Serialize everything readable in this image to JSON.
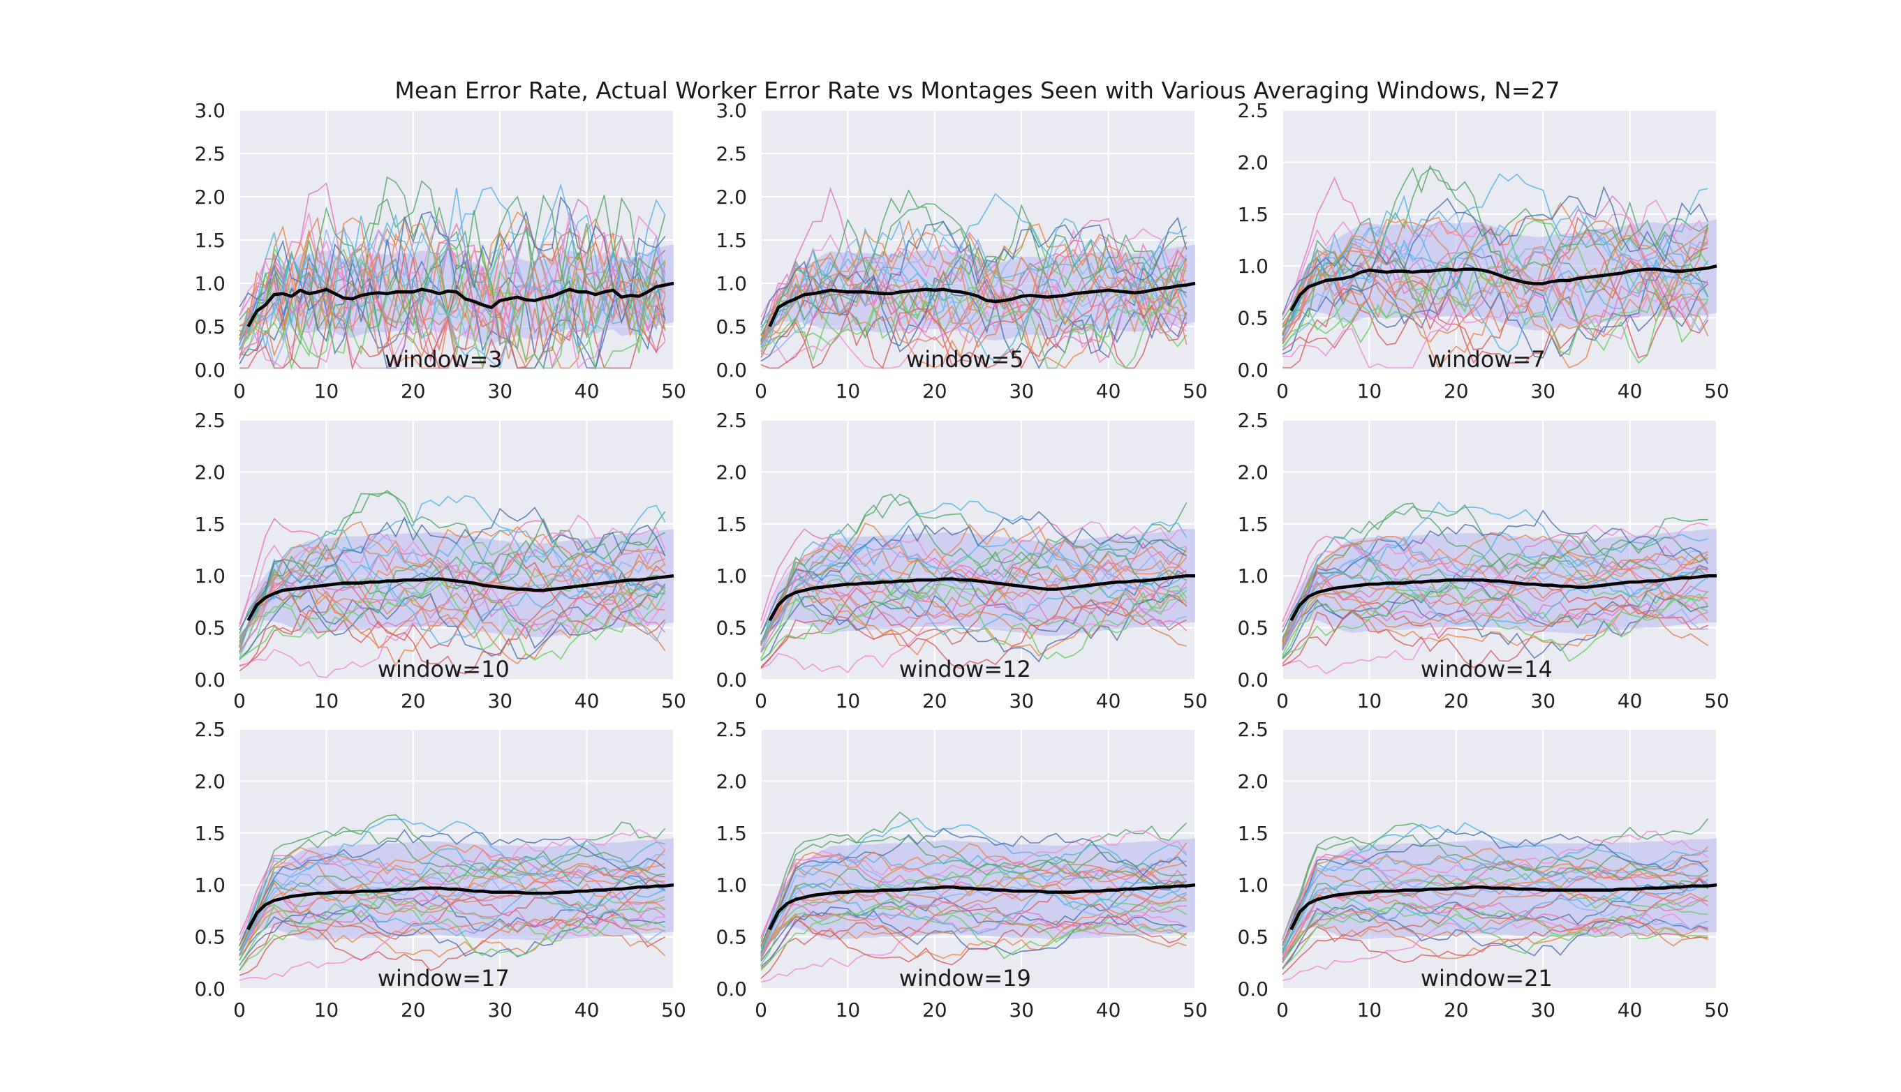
{
  "chart_data": {
    "type": "line",
    "title": "Mean Error Rate, Actual Worker Error Rate vs Montages Seen with Various Averaging Windows, N=27",
    "grid": true,
    "style": {
      "background": "#eaeaf2",
      "grid_color": "#ffffff",
      "mean_color": "#000000",
      "band_color": "#b8b8f0",
      "worker_palette": [
        "#dd8452",
        "#55a868",
        "#4c72b0",
        "#e377c2",
        "#ee854a",
        "#6acc64",
        "#56b4e9",
        "#d65f5f",
        "#8ab4f8",
        "#f08bd6"
      ]
    },
    "x_ticks": [
      0,
      10,
      20,
      30,
      40,
      50
    ],
    "subplots": [
      {
        "label": "window=3",
        "window": 3,
        "xlim": [
          0,
          50
        ],
        "ylim": [
          0,
          3.0
        ],
        "y_ticks": [
          0.0,
          0.5,
          1.0,
          1.5,
          2.0,
          2.5,
          3.0
        ],
        "mean": [
          0.5,
          0.68,
          0.75,
          0.87,
          0.88,
          0.85,
          0.92,
          0.88,
          0.9,
          0.93,
          0.88,
          0.83,
          0.82,
          0.86,
          0.88,
          0.89,
          0.88,
          0.9,
          0.9,
          0.9,
          0.93,
          0.91,
          0.88,
          0.91,
          0.9,
          0.82,
          0.79,
          0.75,
          0.72,
          0.8,
          0.82,
          0.84,
          0.81,
          0.8,
          0.83,
          0.85,
          0.89,
          0.93,
          0.9,
          0.9,
          0.87,
          0.9,
          0.92,
          0.84,
          0.86,
          0.85,
          0.9,
          0.96,
          0.98,
          1.0
        ]
      },
      {
        "label": "window=5",
        "window": 5,
        "xlim": [
          0,
          50
        ],
        "ylim": [
          0,
          3.0
        ],
        "y_ticks": [
          0.0,
          0.5,
          1.0,
          1.5,
          2.0,
          2.5,
          3.0
        ],
        "mean": [
          0.5,
          0.72,
          0.78,
          0.82,
          0.87,
          0.88,
          0.9,
          0.92,
          0.91,
          0.9,
          0.9,
          0.9,
          0.89,
          0.88,
          0.88,
          0.9,
          0.91,
          0.92,
          0.93,
          0.92,
          0.93,
          0.91,
          0.9,
          0.88,
          0.85,
          0.8,
          0.79,
          0.8,
          0.82,
          0.85,
          0.86,
          0.85,
          0.84,
          0.85,
          0.86,
          0.88,
          0.89,
          0.9,
          0.91,
          0.92,
          0.91,
          0.9,
          0.89,
          0.9,
          0.92,
          0.94,
          0.95,
          0.97,
          0.98,
          1.0
        ]
      },
      {
        "label": "window=7",
        "window": 7,
        "xlim": [
          0,
          50
        ],
        "ylim": [
          0,
          2.5
        ],
        "y_ticks": [
          0.0,
          0.5,
          1.0,
          1.5,
          2.0,
          2.5
        ],
        "mean": [
          0.57,
          0.72,
          0.8,
          0.83,
          0.86,
          0.87,
          0.88,
          0.9,
          0.94,
          0.96,
          0.95,
          0.94,
          0.95,
          0.95,
          0.94,
          0.95,
          0.95,
          0.96,
          0.97,
          0.96,
          0.97,
          0.97,
          0.96,
          0.94,
          0.91,
          0.88,
          0.86,
          0.84,
          0.83,
          0.83,
          0.85,
          0.86,
          0.86,
          0.88,
          0.89,
          0.9,
          0.91,
          0.92,
          0.93,
          0.95,
          0.96,
          0.97,
          0.97,
          0.96,
          0.95,
          0.95,
          0.96,
          0.97,
          0.98,
          1.0
        ]
      },
      {
        "label": "window=10",
        "window": 10,
        "xlim": [
          0,
          50
        ],
        "ylim": [
          0,
          2.5
        ],
        "y_ticks": [
          0.0,
          0.5,
          1.0,
          1.5,
          2.0,
          2.5
        ],
        "mean": [
          0.57,
          0.72,
          0.79,
          0.83,
          0.86,
          0.87,
          0.88,
          0.89,
          0.9,
          0.91,
          0.92,
          0.93,
          0.93,
          0.93,
          0.94,
          0.94,
          0.95,
          0.95,
          0.96,
          0.96,
          0.96,
          0.97,
          0.97,
          0.96,
          0.95,
          0.94,
          0.93,
          0.91,
          0.9,
          0.89,
          0.88,
          0.87,
          0.87,
          0.86,
          0.86,
          0.87,
          0.88,
          0.89,
          0.9,
          0.91,
          0.92,
          0.93,
          0.94,
          0.95,
          0.96,
          0.96,
          0.97,
          0.98,
          0.99,
          1.0
        ]
      },
      {
        "label": "window=12",
        "window": 12,
        "xlim": [
          0,
          50
        ],
        "ylim": [
          0,
          2.5
        ],
        "y_ticks": [
          0.0,
          0.5,
          1.0,
          1.5,
          2.0,
          2.5
        ],
        "mean": [
          0.57,
          0.72,
          0.8,
          0.84,
          0.86,
          0.88,
          0.89,
          0.9,
          0.91,
          0.92,
          0.92,
          0.93,
          0.93,
          0.94,
          0.94,
          0.95,
          0.95,
          0.96,
          0.96,
          0.96,
          0.97,
          0.97,
          0.96,
          0.96,
          0.95,
          0.94,
          0.93,
          0.92,
          0.91,
          0.9,
          0.89,
          0.88,
          0.87,
          0.87,
          0.88,
          0.89,
          0.9,
          0.91,
          0.92,
          0.93,
          0.94,
          0.94,
          0.95,
          0.95,
          0.96,
          0.97,
          0.98,
          0.99,
          1.0,
          1.0
        ]
      },
      {
        "label": "window=14",
        "window": 14,
        "xlim": [
          0,
          50
        ],
        "ylim": [
          0,
          2.5
        ],
        "y_ticks": [
          0.0,
          0.5,
          1.0,
          1.5,
          2.0,
          2.5
        ],
        "mean": [
          0.57,
          0.72,
          0.8,
          0.84,
          0.86,
          0.88,
          0.89,
          0.9,
          0.91,
          0.92,
          0.92,
          0.93,
          0.93,
          0.93,
          0.94,
          0.94,
          0.95,
          0.95,
          0.96,
          0.96,
          0.96,
          0.96,
          0.96,
          0.95,
          0.95,
          0.94,
          0.93,
          0.92,
          0.92,
          0.91,
          0.91,
          0.9,
          0.9,
          0.89,
          0.89,
          0.9,
          0.91,
          0.92,
          0.93,
          0.94,
          0.94,
          0.95,
          0.95,
          0.96,
          0.97,
          0.98,
          0.98,
          0.99,
          1.0,
          1.0
        ]
      },
      {
        "label": "window=17",
        "window": 17,
        "xlim": [
          0,
          50
        ],
        "ylim": [
          0,
          2.5
        ],
        "y_ticks": [
          0.0,
          0.5,
          1.0,
          1.5,
          2.0,
          2.5
        ],
        "mean": [
          0.57,
          0.73,
          0.81,
          0.85,
          0.87,
          0.89,
          0.9,
          0.91,
          0.92,
          0.92,
          0.93,
          0.93,
          0.93,
          0.94,
          0.94,
          0.94,
          0.95,
          0.95,
          0.96,
          0.96,
          0.97,
          0.97,
          0.97,
          0.96,
          0.96,
          0.95,
          0.94,
          0.94,
          0.93,
          0.93,
          0.93,
          0.93,
          0.92,
          0.92,
          0.92,
          0.92,
          0.93,
          0.93,
          0.94,
          0.94,
          0.95,
          0.95,
          0.96,
          0.96,
          0.97,
          0.98,
          0.98,
          0.99,
          0.99,
          1.0
        ]
      },
      {
        "label": "window=19",
        "window": 19,
        "xlim": [
          0,
          50
        ],
        "ylim": [
          0,
          2.5
        ],
        "y_ticks": [
          0.0,
          0.5,
          1.0,
          1.5,
          2.0,
          2.5
        ],
        "mean": [
          0.57,
          0.74,
          0.82,
          0.86,
          0.88,
          0.9,
          0.91,
          0.92,
          0.93,
          0.93,
          0.94,
          0.94,
          0.94,
          0.95,
          0.95,
          0.95,
          0.96,
          0.96,
          0.97,
          0.97,
          0.98,
          0.98,
          0.97,
          0.97,
          0.96,
          0.96,
          0.95,
          0.95,
          0.94,
          0.94,
          0.94,
          0.94,
          0.93,
          0.93,
          0.93,
          0.93,
          0.94,
          0.94,
          0.94,
          0.95,
          0.95,
          0.96,
          0.96,
          0.97,
          0.97,
          0.98,
          0.98,
          0.99,
          0.99,
          1.0
        ]
      },
      {
        "label": "window=21",
        "window": 21,
        "xlim": [
          0,
          50
        ],
        "ylim": [
          0,
          2.5
        ],
        "y_ticks": [
          0.0,
          0.5,
          1.0,
          1.5,
          2.0,
          2.5
        ],
        "mean": [
          0.57,
          0.74,
          0.82,
          0.86,
          0.88,
          0.9,
          0.91,
          0.92,
          0.93,
          0.93,
          0.94,
          0.94,
          0.94,
          0.95,
          0.95,
          0.95,
          0.96,
          0.96,
          0.96,
          0.97,
          0.97,
          0.98,
          0.98,
          0.97,
          0.97,
          0.97,
          0.96,
          0.96,
          0.96,
          0.95,
          0.95,
          0.95,
          0.95,
          0.95,
          0.95,
          0.95,
          0.95,
          0.95,
          0.96,
          0.96,
          0.96,
          0.97,
          0.97,
          0.97,
          0.98,
          0.98,
          0.99,
          0.99,
          0.99,
          1.0
        ]
      }
    ]
  }
}
